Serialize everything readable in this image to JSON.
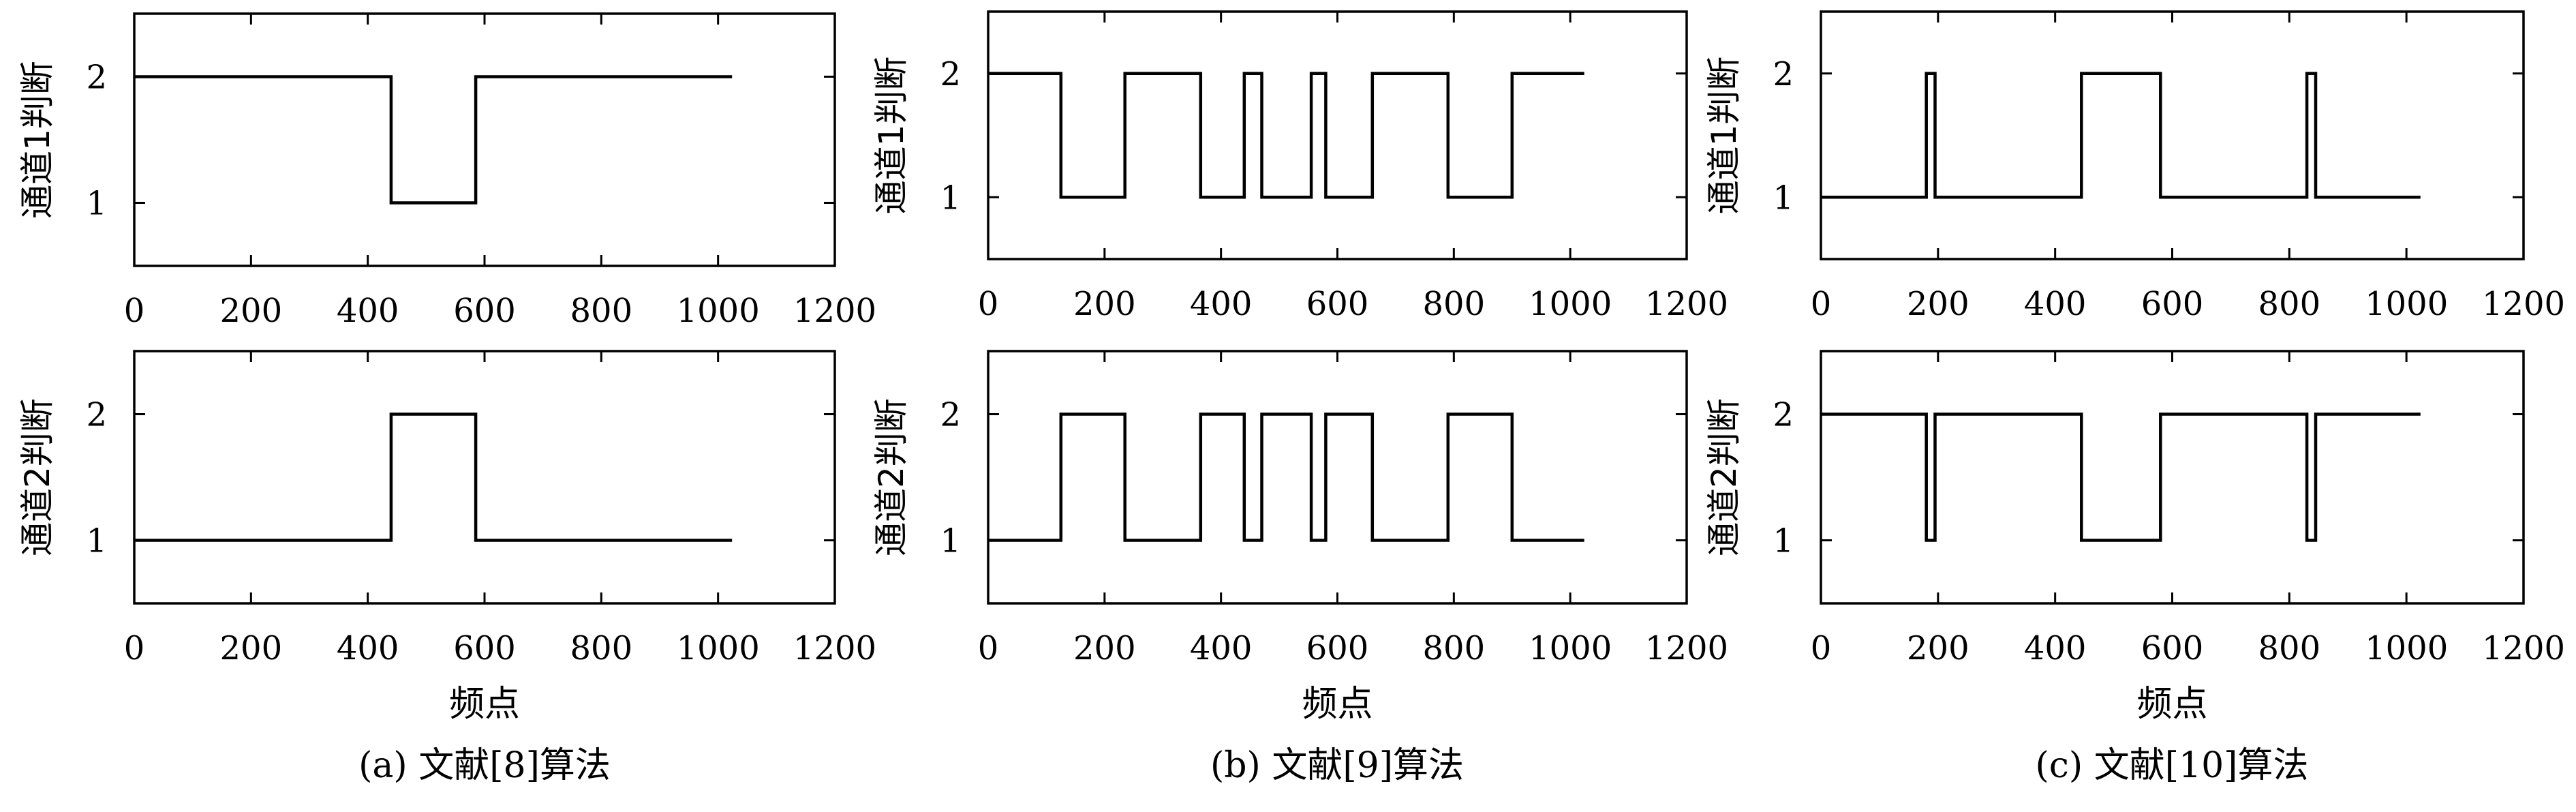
{
  "chart_data": [
    {
      "type": "line",
      "caption": "(a) 文献[8]算法",
      "xlabel": "频点",
      "subplots": [
        {
          "ylabel": "通道1判断",
          "xlim": [
            0,
            1200
          ],
          "ylim": [
            0.5,
            2.5
          ],
          "xticks": [
            "0",
            "200",
            "400",
            "600",
            "800",
            "1000",
            "1200"
          ],
          "yticks": [
            "1",
            "2"
          ],
          "x": [
            0,
            440,
            440,
            585,
            585,
            1024
          ],
          "y": [
            2,
            2,
            1,
            1,
            2,
            2
          ]
        },
        {
          "ylabel": "通道2判断",
          "xlim": [
            0,
            1200
          ],
          "ylim": [
            0.5,
            2.5
          ],
          "xticks": [
            "0",
            "200",
            "400",
            "600",
            "800",
            "1000",
            "1200"
          ],
          "yticks": [
            "1",
            "2"
          ],
          "x": [
            0,
            440,
            440,
            585,
            585,
            1024
          ],
          "y": [
            1,
            1,
            2,
            2,
            1,
            1
          ]
        }
      ]
    },
    {
      "type": "line",
      "caption": "(b) 文献[9]算法",
      "xlabel": "频点",
      "subplots": [
        {
          "ylabel": "通道1判断",
          "xlim": [
            0,
            1200
          ],
          "ylim": [
            0.5,
            2.5
          ],
          "xticks": [
            "0",
            "200",
            "400",
            "600",
            "800",
            "1000",
            "1200"
          ],
          "yticks": [
            "1",
            "2"
          ],
          "x": [
            0,
            125,
            125,
            235,
            235,
            365,
            365,
            440,
            440,
            470,
            470,
            555,
            555,
            580,
            580,
            660,
            660,
            790,
            790,
            900,
            900,
            1024
          ],
          "y": [
            2,
            2,
            1,
            1,
            2,
            2,
            1,
            1,
            2,
            2,
            1,
            1,
            2,
            2,
            1,
            1,
            2,
            2,
            1,
            1,
            2,
            2
          ]
        },
        {
          "ylabel": "通道2判断",
          "xlim": [
            0,
            1200
          ],
          "ylim": [
            0.5,
            2.5
          ],
          "xticks": [
            "0",
            "200",
            "400",
            "600",
            "800",
            "1000",
            "1200"
          ],
          "yticks": [
            "1",
            "2"
          ],
          "x": [
            0,
            125,
            125,
            235,
            235,
            365,
            365,
            440,
            440,
            470,
            470,
            555,
            555,
            580,
            580,
            660,
            660,
            790,
            790,
            900,
            900,
            1024
          ],
          "y": [
            1,
            1,
            2,
            2,
            1,
            1,
            2,
            2,
            1,
            1,
            2,
            2,
            1,
            1,
            2,
            2,
            1,
            1,
            2,
            2,
            1,
            1
          ]
        }
      ]
    },
    {
      "type": "line",
      "caption": "(c) 文献[10]算法",
      "xlabel": "频点",
      "subplots": [
        {
          "ylabel": "通道1判断",
          "xlim": [
            0,
            1200
          ],
          "ylim": [
            0.5,
            2.5
          ],
          "xticks": [
            "0",
            "200",
            "400",
            "600",
            "800",
            "1000",
            "1200"
          ],
          "yticks": [
            "1",
            "2"
          ],
          "x": [
            0,
            180,
            180,
            195,
            195,
            445,
            445,
            580,
            580,
            830,
            830,
            845,
            845,
            1024
          ],
          "y": [
            1,
            1,
            2,
            2,
            1,
            1,
            2,
            2,
            1,
            1,
            2,
            2,
            1,
            1
          ]
        },
        {
          "ylabel": "通道2判断",
          "xlim": [
            0,
            1200
          ],
          "ylim": [
            0.5,
            2.5
          ],
          "xticks": [
            "0",
            "200",
            "400",
            "600",
            "800",
            "1000",
            "1200"
          ],
          "yticks": [
            "1",
            "2"
          ],
          "x": [
            0,
            180,
            180,
            195,
            195,
            445,
            445,
            580,
            580,
            830,
            830,
            845,
            845,
            1024
          ],
          "y": [
            2,
            2,
            1,
            1,
            2,
            2,
            1,
            1,
            2,
            2,
            1,
            1,
            2,
            2
          ]
        }
      ]
    }
  ]
}
